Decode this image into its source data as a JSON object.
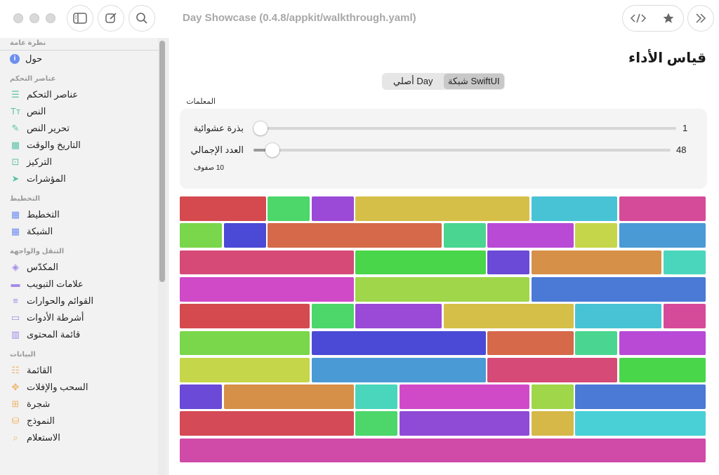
{
  "window": {
    "title": "Day Showcase (0.4.8/appkit/walkthrough.yaml)"
  },
  "toolbar": {
    "left_icons": [
      "sidebar-icon",
      "compose-icon",
      "search-icon"
    ],
    "right_icons": [
      "code-icon",
      "star-icon",
      "chevrons-right-icon"
    ]
  },
  "sidebar": {
    "sections": [
      {
        "header": "نظرة عامة",
        "items": [
          {
            "label": "حول",
            "icon": "info-icon",
            "glyph": "i",
            "color": "#6f8ff0"
          }
        ]
      },
      {
        "header": "عناصر التحكم",
        "items": [
          {
            "label": "عناصر التحكم",
            "icon": "sliders-icon",
            "glyph": "☰",
            "color": "#5bc2a8"
          },
          {
            "label": "النص",
            "icon": "text-icon",
            "glyph": "Tт",
            "color": "#5bc2a8"
          },
          {
            "label": "تحرير النص",
            "icon": "edit-document-icon",
            "glyph": "✎",
            "color": "#5bc2a8"
          },
          {
            "label": "التاريخ والوقت",
            "icon": "calendar-icon",
            "glyph": "▦",
            "color": "#5bc2a8"
          },
          {
            "label": "التركيز",
            "icon": "focus-icon",
            "glyph": "⊡",
            "color": "#5bc2a8"
          },
          {
            "label": "المؤشرات",
            "icon": "pointer-icon",
            "glyph": "➤",
            "color": "#5bc2a8"
          }
        ]
      },
      {
        "header": "التخطيط",
        "items": [
          {
            "label": "التخطيط",
            "icon": "layout-grid-icon",
            "glyph": "▦",
            "color": "#6f8ff0"
          },
          {
            "label": "الشبكة",
            "icon": "grid-icon",
            "glyph": "▦",
            "color": "#6f8ff0"
          }
        ]
      },
      {
        "header": "التنقل والواجهة",
        "items": [
          {
            "label": "المكدّس",
            "icon": "stack-icon",
            "glyph": "◈",
            "color": "#a48ae8"
          },
          {
            "label": "علامات التبويب",
            "icon": "tabs-icon",
            "glyph": "▬",
            "color": "#a48ae8"
          },
          {
            "label": "القوائم والحوارات",
            "icon": "menu-lines-icon",
            "glyph": "≡",
            "color": "#a48ae8"
          },
          {
            "label": "أشرطة الأدوات",
            "icon": "toolbar-icon",
            "glyph": "▭",
            "color": "#a48ae8"
          },
          {
            "label": "قائمة المحتوى",
            "icon": "columns-icon",
            "glyph": "▥",
            "color": "#a48ae8"
          }
        ]
      },
      {
        "header": "البيانات",
        "items": [
          {
            "label": "القائمة",
            "icon": "list-icon",
            "glyph": "☷",
            "color": "#f0b46a"
          },
          {
            "label": "السحب والإفلات",
            "icon": "move-arrows-icon",
            "glyph": "✥",
            "color": "#f0b46a"
          },
          {
            "label": "شجرة",
            "icon": "tree-icon",
            "glyph": "⊞",
            "color": "#f0b46a"
          },
          {
            "label": "النموذج",
            "icon": "database-icon",
            "glyph": "⛁",
            "color": "#f0b46a"
          },
          {
            "label": "الاستعلام",
            "icon": "magnifier-icon",
            "glyph": "⌕",
            "color": "#f0b46a"
          }
        ]
      }
    ]
  },
  "main": {
    "title": "قياس الأداء",
    "segments": [
      {
        "label": "شبكة SwiftUI",
        "active": true
      },
      {
        "label": "أصلي Day",
        "active": false
      }
    ],
    "params_label": "المعلمات",
    "params": {
      "seed_label": "بذرة عشوائية",
      "seed_value": "1",
      "seed_fraction": 0.0,
      "total_label": "العدد الإجمالي",
      "total_value": "48",
      "total_fraction": 0.03,
      "rows_note": "10 صفوف"
    },
    "grid_rows": [
      [
        [
          "#d44a4f",
          2
        ],
        [
          "#4dd66a",
          1
        ],
        [
          "#9a4ad6",
          1
        ],
        [
          "#d6bf48",
          4
        ],
        [
          "#48c3d6",
          2
        ],
        [
          "#d64a9a",
          2
        ]
      ],
      [
        [
          "#7ad64a",
          1
        ],
        [
          "#4a4ad6",
          1
        ],
        [
          "#d6694a",
          4
        ],
        [
          "#4ad690",
          1
        ],
        [
          "#b84ad6",
          2
        ],
        [
          "#c6d64a",
          1
        ],
        [
          "#4a9ad6",
          2
        ]
      ],
      [
        [
          "#d64a78",
          4
        ],
        [
          "#4ad64a",
          3
        ],
        [
          "#6a4ad6",
          1
        ],
        [
          "#d69048",
          3
        ],
        [
          "#4ad6bc",
          1
        ]
      ],
      [
        [
          "#d04ac8",
          4
        ],
        [
          "#9fd64a",
          4
        ],
        [
          "#4a7ad6",
          4
        ]
      ],
      [
        [
          "#d44a4f",
          3
        ],
        [
          "#4dd66a",
          1
        ],
        [
          "#9a4ad6",
          2
        ],
        [
          "#d6bf48",
          3
        ],
        [
          "#48c3d6",
          2
        ],
        [
          "#d64a9a",
          1
        ]
      ],
      [
        [
          "#7ad64a",
          3
        ],
        [
          "#4a4ad6",
          4
        ],
        [
          "#d6694a",
          2
        ],
        [
          "#4ad690",
          1
        ],
        [
          "#b84ad6",
          2
        ]
      ],
      [
        [
          "#c6d64a",
          3
        ],
        [
          "#4a9ad6",
          4
        ],
        [
          "#d64a78",
          3
        ],
        [
          "#4ad64a",
          2
        ]
      ],
      [
        [
          "#6a4ad6",
          1
        ],
        [
          "#d69048",
          3
        ],
        [
          "#4ad6bc",
          1
        ],
        [
          "#d04ac8",
          3
        ],
        [
          "#9fd64a",
          1
        ],
        [
          "#4a7ad6",
          3
        ]
      ],
      [
        [
          "#d44a56",
          4
        ],
        [
          "#4dd66a",
          1
        ],
        [
          "#8f4ad6",
          3
        ],
        [
          "#d6b848",
          1
        ],
        [
          "#48d0d6",
          3
        ]
      ],
      [
        [
          "#d04aa8",
          12
        ]
      ]
    ]
  }
}
